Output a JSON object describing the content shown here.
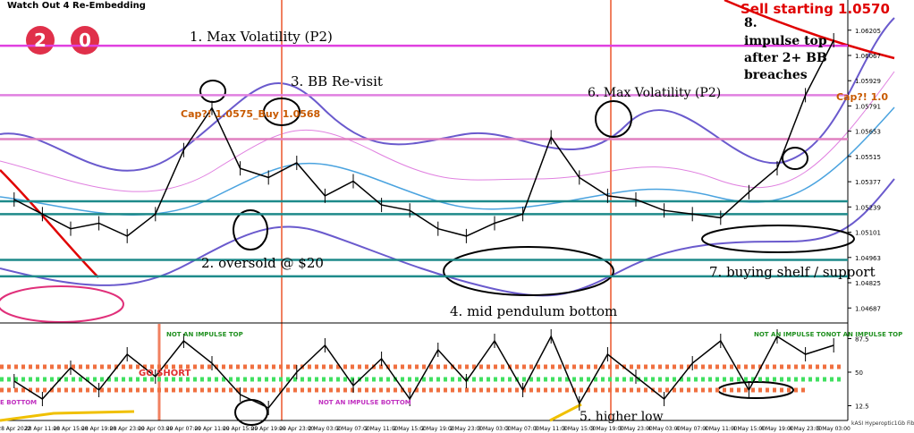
{
  "chart_data": [
    {
      "type": "line",
      "title": "Watch Out 4 Re-Embedding",
      "categories": [
        "28 Apr 2022",
        "28 Apr 11:00",
        "28 Apr 15:00",
        "28 Apr 19:00",
        "28 Apr 23:00",
        "29 Apr 03:00",
        "29 Apr 07:00",
        "29 Apr 11:00",
        "29 Apr 15:00",
        "29 Apr 19:00",
        "29 Apr 23:00",
        "2 May 03:00",
        "2 May 07:00",
        "2 May 11:00",
        "2 May 15:00",
        "2 May 19:00",
        "2 May 23:00",
        "3 May 03:00",
        "3 May 07:00",
        "3 May 11:00",
        "3 May 15:00",
        "3 May 19:00",
        "3 May 23:00",
        "4 May 03:00",
        "4 May 07:00",
        "4 May 11:00",
        "4 May 15:00",
        "4 May 19:00",
        "4 May 23:00",
        "5 May 03:00"
      ],
      "values": [
        1.0528,
        1.052,
        1.0512,
        1.0515,
        1.0508,
        1.052,
        1.0555,
        1.0578,
        1.0545,
        1.054,
        1.0548,
        1.053,
        1.0538,
        1.0525,
        1.0522,
        1.0512,
        1.0508,
        1.0515,
        1.052,
        1.0562,
        1.054,
        1.053,
        1.0528,
        1.0522,
        1.052,
        1.0518,
        1.0532,
        1.0545,
        1.0585,
        1.0615
      ],
      "color": "#000000",
      "ylim": [
        1.0461,
        1.0637
      ],
      "yticks": [
        1.06205,
        1.06067,
        1.05929,
        1.05791,
        1.05653,
        1.05515,
        1.05377,
        1.05239,
        1.05101,
        1.04963,
        1.04825,
        1.04687
      ],
      "levels": [
        {
          "value": 1.0612,
          "color": "#e040e0"
        },
        {
          "value": 1.0585,
          "color": "#e080e0"
        },
        {
          "value": 1.0561,
          "color": "#e080c0"
        },
        {
          "value": 1.0527,
          "color": "#1e8a8a"
        },
        {
          "value": 1.052,
          "color": "#1e8a8a"
        },
        {
          "value": 1.0495,
          "color": "#1e8a8a"
        },
        {
          "value": 1.0486,
          "color": "#1e8a8a"
        }
      ],
      "annotations": [
        "2",
        "0",
        "1. Max Volatility (P2)",
        "3. BB Re-visit",
        "2. oversold @ $20",
        "4. mid pendulum bottom",
        "6. Max Volatility (P2)",
        "7. buying shelf / support",
        "8.",
        "impulse top",
        "after 2+ BB",
        "breaches",
        "Sell starting 1.0570",
        "Cap?! 1.0575_Buy 1.0568",
        "Cap?! 1.0"
      ]
    },
    {
      "type": "line",
      "values": [
        40,
        20,
        55,
        30,
        70,
        45,
        85,
        60,
        25,
        10,
        50,
        80,
        35,
        65,
        20,
        75,
        40,
        85,
        30,
        90,
        15,
        70,
        45,
        20,
        60,
        85,
        30,
        90,
        70,
        80
      ],
      "color": "#000000",
      "ylim": [
        0,
        100
      ],
      "yticks": [
        12.5,
        50,
        87.5
      ],
      "annotations": [
        "5. higher low",
        "NOT AN IMPULSE TOP",
        "GO SHORT",
        "NOT AN IMPULSE BOTTOM",
        "E BOTTOM",
        "NOT AN IMPULSE TONOT AN IMPULSE TOP"
      ]
    }
  ],
  "footer": "kASI Hyperoptic1Gb Fibre 2.4Ghz"
}
